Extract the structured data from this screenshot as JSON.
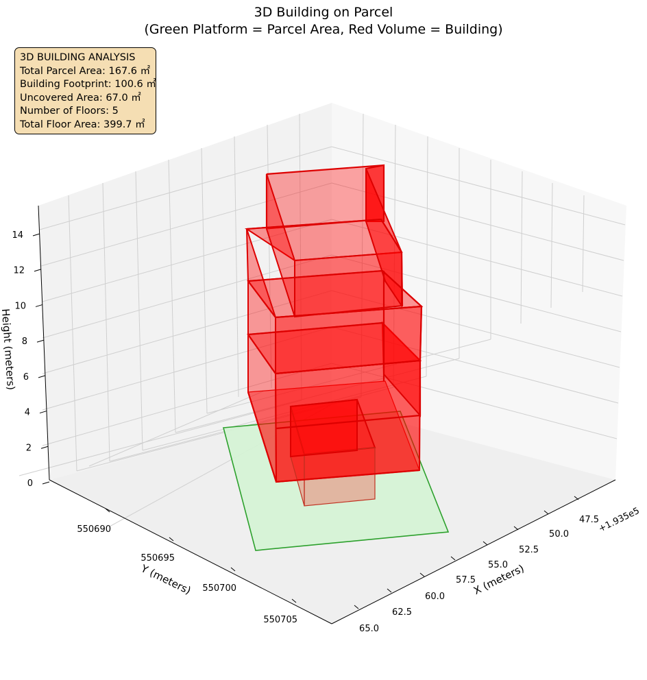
{
  "chart_data": {
    "type": "3d-bar",
    "title_line1": "3D Building on Parcel",
    "title_line2": "(Green Platform = Parcel Area, Red Volume = Building)",
    "xlabel": "X (meters)",
    "ylabel": "Y (meters)",
    "zlabel": "Height (meters)",
    "x_offset_label": "+1.935e5",
    "x_ticks": [
      "47.5",
      "50.0",
      "52.5",
      "55.0",
      "57.5",
      "60.0",
      "62.5",
      "65.0"
    ],
    "y_ticks": [
      "550690",
      "550695",
      "550700",
      "550705"
    ],
    "z_ticks": [
      "0",
      "2",
      "4",
      "6",
      "8",
      "10",
      "12",
      "14"
    ],
    "z_lim": [
      0,
      15
    ],
    "grid": true,
    "colors": {
      "parcel": "#2ca02c",
      "parcel_fill": "#d5f2d5",
      "building": "#dd0000",
      "info_bg": "#f5deb3"
    },
    "info_box": {
      "heading": "3D BUILDING ANALYSIS",
      "line1": "Total Parcel Area: 167.6 ㎡",
      "line2": "Building Footprint: 100.6 ㎡",
      "line3": "Uncovered Area: 67.0 ㎡",
      "line4": "Number of Floors: 5",
      "line5": "Total Floor Area: 399.7 ㎡"
    },
    "parcel_area_m2": 167.6,
    "building_footprint_m2": 100.6,
    "uncovered_area_m2": 67.0,
    "floors": 5,
    "total_floor_area_m2": 399.7
  }
}
